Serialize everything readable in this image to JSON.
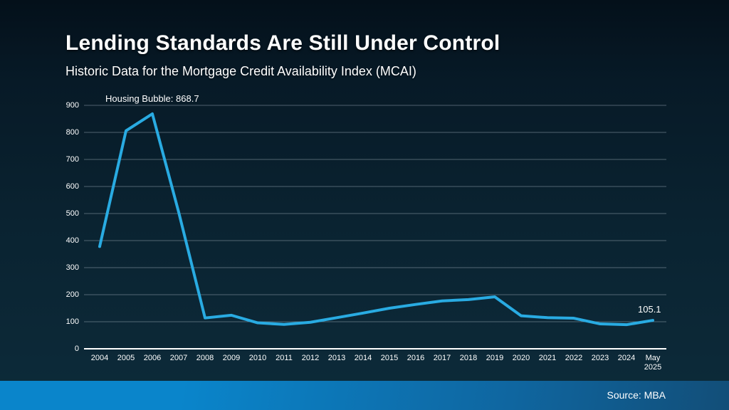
{
  "header": {
    "title": "Lending Standards Are Still Under Control",
    "subtitle": "Historic Data for the Mortgage Credit Availability Index (MCAI)"
  },
  "chart_data": {
    "type": "line",
    "title": "Historic Data for the Mortgage Credit Availability Index (MCAI)",
    "categories": [
      "2004",
      "2005",
      "2006",
      "2007",
      "2008",
      "2009",
      "2010",
      "2011",
      "2012",
      "2013",
      "2014",
      "2015",
      "2016",
      "2017",
      "2018",
      "2019",
      "2020",
      "2021",
      "2022",
      "2023",
      "2024",
      "May 2025"
    ],
    "values": [
      378,
      806,
      868.7,
      505,
      114,
      124,
      96,
      90,
      98,
      115,
      132,
      150,
      164,
      177,
      182,
      192,
      122,
      115,
      113,
      92,
      89,
      105.1
    ],
    "xlabel": "",
    "ylabel": "",
    "yticks": [
      0,
      100,
      200,
      300,
      400,
      500,
      600,
      700,
      800,
      900
    ],
    "ylim": [
      0,
      900
    ],
    "grid": true,
    "legend_position": "none",
    "annotation": "Housing Bubble: 868.7",
    "end_label": "105.1",
    "line_color": "#29abe2",
    "gridline_color": "rgba(170,185,195,0.45)",
    "axis_color": "#ffffff"
  },
  "footer": {
    "source": "Source: MBA"
  },
  "colors": {
    "background_top": "#04101a",
    "background_bottom": "#0d2b3a",
    "footer_bar_left": "#0a85cb",
    "footer_bar_right": "#124e78",
    "accent_line": "#29abe2"
  }
}
